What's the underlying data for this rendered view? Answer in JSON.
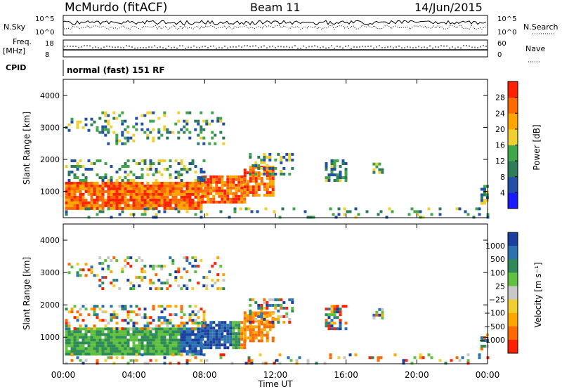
{
  "header": {
    "station": "McMurdo (fitACF)",
    "beam": "Beam 11",
    "date": "14/Jun/2015"
  },
  "top_panel": {
    "nsky_label": "N.Sky",
    "nsky_ticks": [
      "10^5",
      "10^0"
    ],
    "nsearch_label": "N.Search",
    "nsearch_ticks": [
      "10^5",
      "10^0"
    ],
    "freq_label": "Freq.",
    "freq_unit": "[MHz]",
    "freq_ticks": [
      "18",
      "8"
    ],
    "nave_label": "Nave",
    "nave_ticks": [
      "60",
      "0"
    ],
    "cpid_label": "CPID",
    "cpid_text": "normal (fast) 151 RF"
  },
  "colors": {
    "power": [
      "#1a1aff",
      "#2050a8",
      "#2e7d5a",
      "#3fa64a",
      "#f0d030",
      "#ffa500",
      "#ff6a00",
      "#ff2000"
    ],
    "velocity": [
      "#1a3fa0",
      "#2a73b0",
      "#2e8b57",
      "#60c040",
      "#c8c8c8",
      "#f0d030",
      "#ffa500",
      "#ff6a00",
      "#ff2000"
    ]
  },
  "chart_data": [
    {
      "type": "heatmap",
      "title": "",
      "xlabel": "",
      "ylabel": "Slant Range [km]",
      "x_ticks": [
        "00:00",
        "04:00",
        "08:00",
        "12:00",
        "16:00",
        "20:00",
        "00:00"
      ],
      "x_range_hours": [
        0,
        24
      ],
      "ylim": [
        180,
        4500
      ],
      "y_ticks": [
        1000,
        2000,
        3000,
        4000
      ],
      "colorbar": {
        "label": "Power [dB]",
        "ticks": [
          4,
          8,
          12,
          16,
          20,
          24,
          28
        ],
        "range": [
          0,
          32
        ]
      }
    },
    {
      "type": "heatmap",
      "title": "",
      "xlabel": "Time UT",
      "ylabel": "Slant Range [km]",
      "x_ticks": [
        "00:00",
        "04:00",
        "08:00",
        "12:00",
        "16:00",
        "20:00",
        "00:00"
      ],
      "x_range_hours": [
        0,
        24
      ],
      "ylim": [
        180,
        4500
      ],
      "y_ticks": [
        1000,
        2000,
        3000,
        4000
      ],
      "colorbar": {
        "label": "Velocity [m s⁻¹]",
        "ticks": [
          "1000",
          "500",
          "100",
          "25",
          "−25",
          "−100",
          "−500",
          "−1000"
        ]
      }
    }
  ]
}
